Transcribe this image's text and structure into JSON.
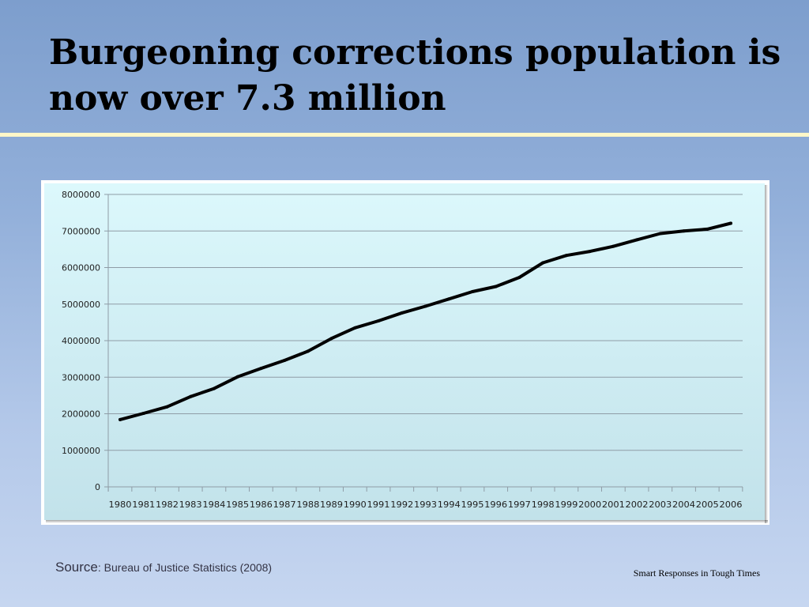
{
  "slide": {
    "title": "Burgeoning corrections population is now over 7.3 million",
    "source_label": "Source",
    "source_text": ": Bureau of Justice Statistics (2008)",
    "footer": "Smart Responses in Tough Times"
  },
  "chart_data": {
    "type": "line",
    "title": "",
    "xlabel": "",
    "ylabel": "",
    "ylim": [
      0,
      8000000
    ],
    "yticks": [
      0,
      1000000,
      2000000,
      3000000,
      4000000,
      5000000,
      6000000,
      7000000,
      8000000
    ],
    "grid": true,
    "categories": [
      "1980",
      "1981",
      "1982",
      "1983",
      "1984",
      "1985",
      "1986",
      "1987",
      "1988",
      "1989",
      "1990",
      "1991",
      "1992",
      "1993",
      "1994",
      "1995",
      "1996",
      "1997",
      "1998",
      "1999",
      "2000",
      "2001",
      "2002",
      "2003",
      "2004",
      "2005",
      "2006"
    ],
    "series": [
      {
        "values": [
          1840000,
          2010000,
          2190000,
          2470000,
          2690000,
          3010000,
          3240000,
          3460000,
          3710000,
          4060000,
          4350000,
          4540000,
          4760000,
          4940000,
          5140000,
          5340000,
          5480000,
          5730000,
          6130000,
          6330000,
          6440000,
          6580000,
          6760000,
          6930000,
          7000000,
          7050000,
          7210000
        ]
      }
    ],
    "colors": {
      "line": "#000000",
      "plot_bg_top": "#dcf8fc",
      "plot_bg_bottom": "#c2e2ea",
      "grid": "#8f9ca6"
    }
  }
}
